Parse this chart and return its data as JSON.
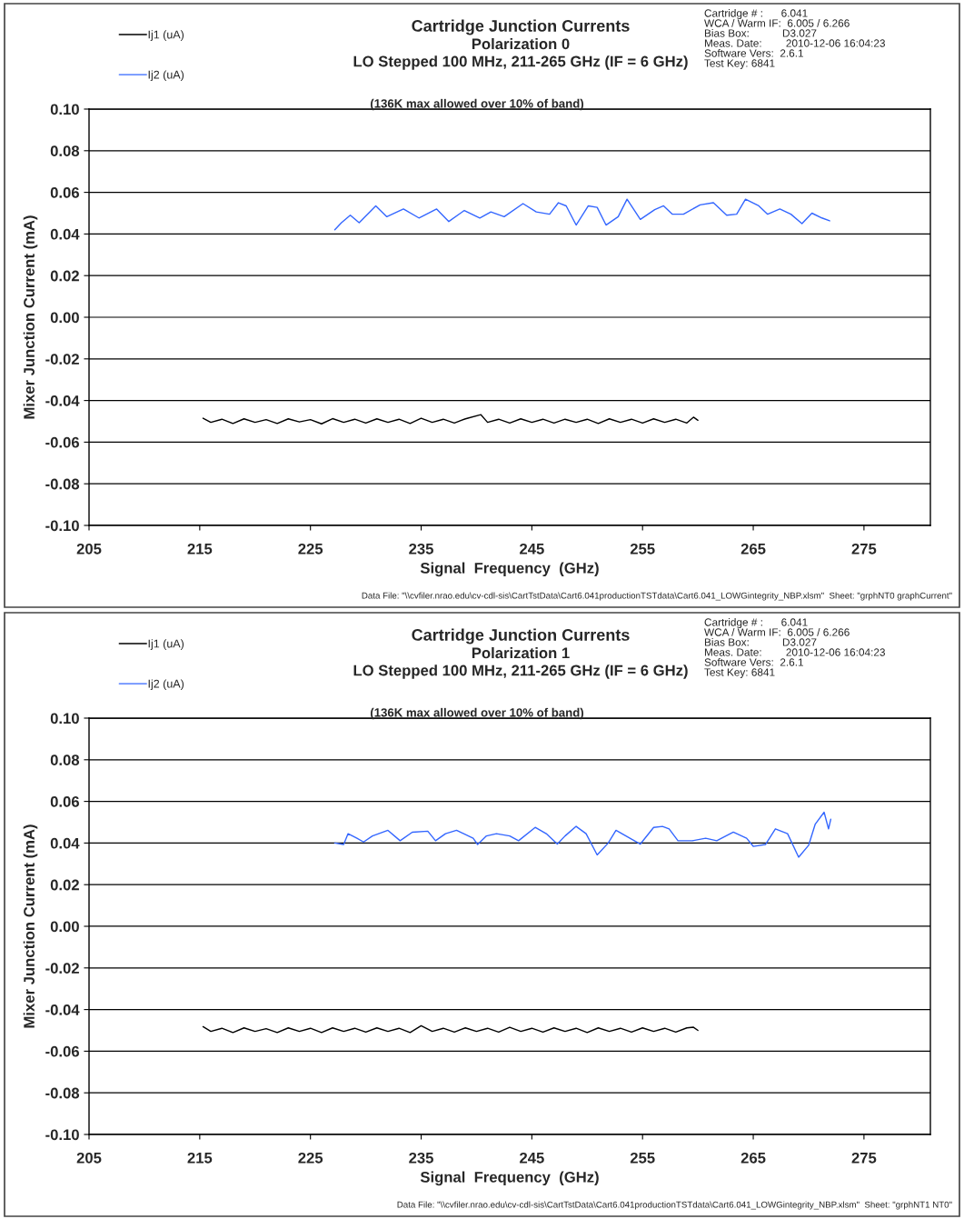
{
  "chart_data": [
    {
      "type": "line",
      "title": "Cartridge Junction Currents",
      "subtitle": "Polarization 0\nLO Stepped 100 MHz, 211-265 GHz (IF = 6 GHz)",
      "xlabel": "Signal  Frequency  (GHz)",
      "ylabel": "Mixer Junction Current (mA)",
      "annotations": [
        "Cartridge # :      6.041\nWCA / Warm IF:  6.005 / 6.266\nBias Box:           D3.027\nMeas. Date:        2010-12-06 16:04:23\nSoftware Vers:  2.6.1\nTest Key: 6841",
        "(136K max allowed over 10% of band)",
        "Data File: \"\\\\cvfiler.nrao.edu\\cv-cdl-sis\\CartTstData\\Cart6.041productionTSTdata\\Cart6.041_LOWGintegrity_NBP.xlsm\"  Sheet: \"grphNT0 graphCurrent\""
      ],
      "xlim": [
        205,
        281
      ],
      "xticks": [
        205,
        215,
        225,
        235,
        245,
        255,
        265,
        275
      ],
      "ylim": [
        -0.1,
        0.1
      ],
      "yticks": [
        {
          "value": -0.1,
          "label": "-0.10"
        },
        {
          "value": -0.08,
          "label": "-0.08"
        },
        {
          "value": -0.06,
          "label": "-0.06"
        },
        {
          "value": -0.04,
          "label": "-0.04"
        },
        {
          "value": -0.02,
          "label": "-0.02"
        },
        {
          "value": 0,
          "label": "0.00"
        },
        {
          "value": 0.02,
          "label": "0.02"
        },
        {
          "value": 0.04,
          "label": "0.04"
        },
        {
          "value": 0.06,
          "label": "0.06"
        },
        {
          "value": 0.08,
          "label": "0.08"
        },
        {
          "value": 0.1,
          "label": "0.10"
        }
      ],
      "grid": "y",
      "legend": "top left",
      "marker": "none",
      "line_style": "solid",
      "series": [
        {
          "name": "Ij1 (uA)",
          "color": "#000000",
          "x": [
            215.3,
            216.0,
            217.0,
            218.0,
            219.0,
            220.0,
            221.0,
            222.0,
            223.0,
            224.0,
            225.0,
            226.0,
            227.0,
            228.0,
            229.0,
            230.0,
            231.0,
            232.0,
            233.0,
            234.0,
            235.0,
            236.0,
            237.0,
            238.0,
            239.0,
            240.4,
            241.0,
            242.0,
            243.0,
            244.0,
            245.0,
            246.0,
            247.0,
            248.0,
            249.0,
            250.0,
            251.0,
            252.0,
            253.0,
            254.0,
            255.0,
            256.0,
            257.0,
            258.0,
            259.0,
            259.6,
            260.0
          ],
          "values": [
            -0.0485,
            -0.0505,
            -0.049,
            -0.051,
            -0.0488,
            -0.0505,
            -0.0492,
            -0.051,
            -0.0488,
            -0.0503,
            -0.0492,
            -0.0512,
            -0.0487,
            -0.0505,
            -0.049,
            -0.0508,
            -0.0488,
            -0.0505,
            -0.049,
            -0.051,
            -0.0485,
            -0.0505,
            -0.049,
            -0.0508,
            -0.0488,
            -0.0468,
            -0.0505,
            -0.049,
            -0.0508,
            -0.0488,
            -0.0505,
            -0.049,
            -0.0508,
            -0.049,
            -0.0505,
            -0.049,
            -0.051,
            -0.0488,
            -0.0505,
            -0.049,
            -0.0508,
            -0.0488,
            -0.0505,
            -0.049,
            -0.0508,
            -0.048,
            -0.0495
          ]
        },
        {
          "name": "Ij2 (uA)",
          "color": "#3366ff",
          "x": [
            227.2,
            227.8,
            228.6,
            229.4,
            230.9,
            231.9,
            233.4,
            234.8,
            236.4,
            237.5,
            238.9,
            240.3,
            241.3,
            242.5,
            244.2,
            245.4,
            246.6,
            247.4,
            248.1,
            249.0,
            250.1,
            250.9,
            251.7,
            252.8,
            253.6,
            254.8,
            256.1,
            256.9,
            257.7,
            258.7,
            260.2,
            261.4,
            262.6,
            263.5,
            264.3,
            265.5,
            266.3,
            267.4,
            268.4,
            269.4,
            270.3,
            271.2,
            271.9
          ],
          "values": [
            0.042,
            0.0454,
            0.049,
            0.0454,
            0.0535,
            0.0483,
            0.052,
            0.0477,
            0.052,
            0.046,
            0.0513,
            0.0477,
            0.0506,
            0.0483,
            0.0546,
            0.0506,
            0.0495,
            0.055,
            0.0535,
            0.0443,
            0.0535,
            0.0528,
            0.0443,
            0.0483,
            0.0567,
            0.047,
            0.0517,
            0.0535,
            0.0495,
            0.0495,
            0.054,
            0.055,
            0.049,
            0.0495,
            0.0567,
            0.0535,
            0.0495,
            0.052,
            0.0495,
            0.045,
            0.05,
            0.0477,
            0.0463
          ]
        }
      ]
    },
    {
      "type": "line",
      "title": "Cartridge Junction Currents",
      "subtitle": "Polarization 1\nLO Stepped 100 MHz, 211-265 GHz (IF = 6 GHz)",
      "xlabel": "Signal  Frequency  (GHz)",
      "ylabel": "Mixer Junction Current (mA)",
      "annotations": [
        "Cartridge # :      6.041\nWCA / Warm IF:  6.005 / 6.266\nBias Box:           D3.027\nMeas. Date:        2010-12-06 16:04:23\nSoftware Vers:  2.6.1\nTest Key: 6841",
        "(136K max allowed over 10% of band)",
        "Data File: \"\\\\cvfiler.nrao.edu\\cv-cdl-sis\\CartTstData\\Cart6.041productionTSTdata\\Cart6.041_LOWGintegrity_NBP.xlsm\"  Sheet: \"grphNT1 NT0\""
      ],
      "xlim": [
        205,
        281
      ],
      "xticks": [
        205,
        215,
        225,
        235,
        245,
        255,
        265,
        275
      ],
      "ylim": [
        -0.1,
        0.1
      ],
      "yticks": [
        {
          "value": -0.1,
          "label": "-0.10"
        },
        {
          "value": -0.08,
          "label": "-0.08"
        },
        {
          "value": -0.06,
          "label": "-0.06"
        },
        {
          "value": -0.04,
          "label": "-0.04"
        },
        {
          "value": -0.02,
          "label": "-0.02"
        },
        {
          "value": 0,
          "label": "0.00"
        },
        {
          "value": 0.02,
          "label": "0.02"
        },
        {
          "value": 0.04,
          "label": "0.04"
        },
        {
          "value": 0.06,
          "label": "0.06"
        },
        {
          "value": 0.08,
          "label": "0.08"
        },
        {
          "value": 0.1,
          "label": "0.10"
        }
      ],
      "grid": "y",
      "legend": "top left",
      "marker": "none",
      "line_style": "solid",
      "series": [
        {
          "name": "Ij1 (uA)",
          "color": "#000000",
          "x": [
            215.3,
            216.0,
            217.0,
            218.0,
            219.0,
            220.0,
            221.0,
            222.0,
            223.0,
            224.0,
            225.0,
            226.0,
            227.0,
            228.0,
            229.0,
            230.0,
            231.0,
            232.0,
            233.0,
            234.0,
            235.0,
            236.0,
            237.0,
            238.0,
            239.0,
            240.0,
            241.0,
            242.0,
            243.0,
            244.0,
            245.0,
            246.0,
            247.0,
            248.0,
            249.0,
            250.0,
            251.0,
            252.0,
            253.0,
            254.0,
            255.0,
            256.0,
            257.0,
            258.0,
            259.0,
            259.6,
            260.0
          ],
          "values": [
            -0.0482,
            -0.0505,
            -0.049,
            -0.051,
            -0.0488,
            -0.0505,
            -0.0492,
            -0.051,
            -0.0488,
            -0.0505,
            -0.049,
            -0.051,
            -0.0488,
            -0.0505,
            -0.049,
            -0.0508,
            -0.0488,
            -0.0505,
            -0.049,
            -0.051,
            -0.0478,
            -0.0505,
            -0.049,
            -0.0508,
            -0.0488,
            -0.0505,
            -0.049,
            -0.0508,
            -0.0485,
            -0.0505,
            -0.049,
            -0.0508,
            -0.0488,
            -0.0505,
            -0.049,
            -0.051,
            -0.0488,
            -0.0505,
            -0.049,
            -0.0508,
            -0.0488,
            -0.0505,
            -0.049,
            -0.0508,
            -0.0488,
            -0.0485,
            -0.05
          ]
        },
        {
          "name": "Ij2 (uA)",
          "color": "#3366ff",
          "x": [
            227.2,
            228.0,
            228.4,
            229.2,
            229.8,
            230.6,
            232.0,
            233.1,
            234.2,
            235.6,
            236.3,
            237.2,
            238.2,
            239.7,
            240.1,
            240.9,
            241.8,
            243.0,
            243.8,
            245.3,
            246.3,
            247.3,
            248.0,
            249.0,
            249.9,
            250.9,
            251.9,
            252.6,
            253.5,
            254.8,
            256.0,
            256.8,
            257.4,
            258.2,
            259.5,
            260.7,
            261.7,
            263.2,
            264.4,
            265.0,
            266.1,
            267.0,
            268.1,
            269.1,
            270.0,
            270.6,
            271.4,
            271.8,
            272.0
          ],
          "values": [
            0.04,
            0.0393,
            0.0445,
            0.0423,
            0.0405,
            0.0434,
            0.0461,
            0.0411,
            0.0452,
            0.0457,
            0.0411,
            0.0445,
            0.0461,
            0.0423,
            0.0393,
            0.0434,
            0.0445,
            0.0434,
            0.0411,
            0.0475,
            0.0445,
            0.0395,
            0.0434,
            0.048,
            0.0445,
            0.0343,
            0.04,
            0.0461,
            0.0434,
            0.0395,
            0.0475,
            0.048,
            0.0468,
            0.0411,
            0.0411,
            0.0423,
            0.0411,
            0.0452,
            0.0423,
            0.0384,
            0.0393,
            0.0468,
            0.0445,
            0.0332,
            0.0389,
            0.0491,
            0.0548,
            0.0468,
            0.0514
          ]
        }
      ]
    }
  ]
}
